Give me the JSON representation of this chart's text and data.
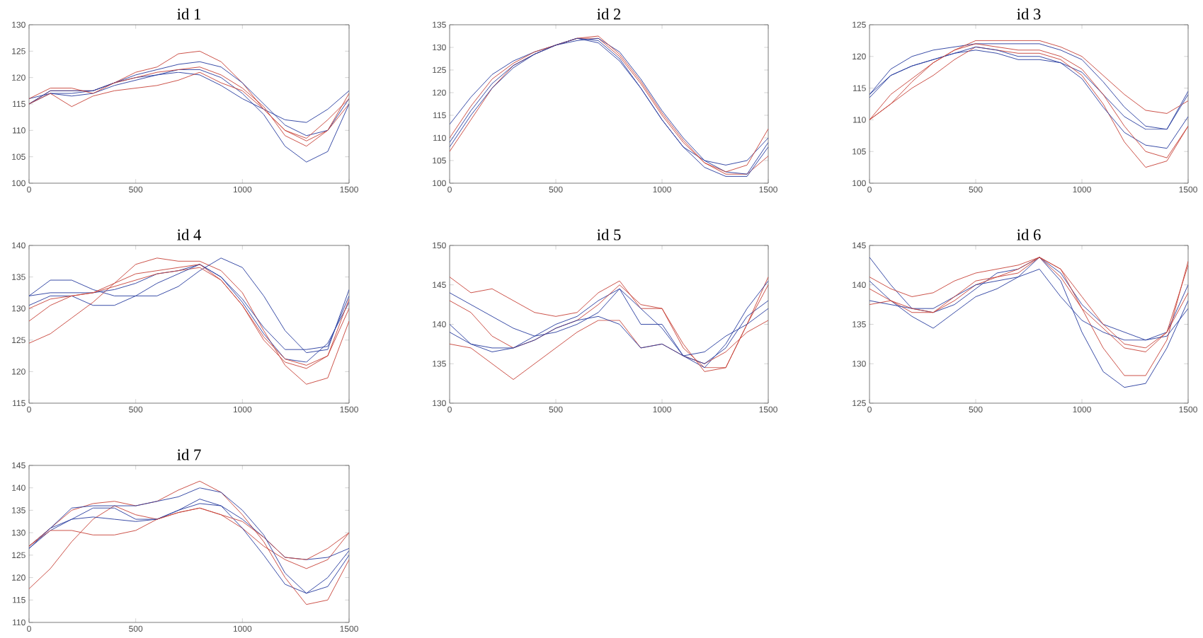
{
  "chart_data": [
    {
      "type": "line",
      "title": "id 1",
      "x": [
        0,
        100,
        200,
        300,
        400,
        500,
        600,
        700,
        800,
        900,
        1000,
        1100,
        1200,
        1300,
        1400,
        1500
      ],
      "xlim": [
        0,
        1500
      ],
      "xticks": [
        0,
        500,
        1000,
        1500
      ],
      "ylim": [
        100,
        130
      ],
      "yticks": [
        100,
        105,
        110,
        115,
        120,
        125,
        130
      ],
      "series": [
        {
          "color": "#c8463c",
          "values": [
            115,
            117.5,
            117.5,
            117.5,
            119,
            121,
            122,
            124.5,
            125,
            123,
            119,
            114,
            110,
            108,
            110,
            115
          ]
        },
        {
          "color": "#2b3fa0",
          "values": [
            116,
            117,
            117,
            117.5,
            119,
            120.5,
            121.5,
            122.5,
            123,
            122,
            119,
            115,
            111,
            109,
            110,
            116
          ]
        },
        {
          "color": "#2b3fa0",
          "values": [
            115,
            117,
            116.5,
            117,
            118.5,
            119.5,
            120.5,
            121.5,
            121.5,
            120,
            117,
            113,
            107,
            104,
            106,
            115
          ]
        },
        {
          "color": "#2b3fa0",
          "values": [
            115,
            117.5,
            117.5,
            117.5,
            119,
            120,
            120.5,
            121,
            120.5,
            118.5,
            116,
            114,
            112,
            111.5,
            114,
            117.5
          ]
        },
        {
          "color": "#c8463c",
          "values": [
            115,
            117,
            114.5,
            116.5,
            117.5,
            118,
            118.5,
            119.5,
            121,
            119,
            117.5,
            114,
            110,
            108.5,
            112,
            116
          ]
        },
        {
          "color": "#c8463c",
          "values": [
            116,
            118,
            118,
            117,
            119,
            120,
            121,
            121.5,
            122,
            120.5,
            118,
            114.5,
            109,
            107,
            110,
            117
          ]
        }
      ]
    },
    {
      "type": "line",
      "title": "id 2",
      "x": [
        0,
        100,
        200,
        300,
        400,
        500,
        600,
        700,
        800,
        900,
        1000,
        1100,
        1200,
        1300,
        1400,
        1500
      ],
      "xlim": [
        0,
        1500
      ],
      "xticks": [
        0,
        500,
        1000,
        1500
      ],
      "ylim": [
        100,
        135
      ],
      "yticks": [
        100,
        105,
        110,
        115,
        120,
        125,
        130,
        135
      ],
      "series": [
        {
          "color": "#2b3fa0",
          "values": [
            113,
            119,
            124,
            127,
            129,
            130.5,
            132,
            131,
            127,
            121,
            114,
            108,
            105,
            104,
            105,
            110
          ]
        },
        {
          "color": "#c8463c",
          "values": [
            107,
            114,
            121,
            126,
            128.5,
            130.5,
            132,
            132,
            128,
            122,
            115,
            109,
            104.5,
            102,
            102,
            106
          ]
        },
        {
          "color": "#2b3fa0",
          "values": [
            108,
            115,
            121,
            125.5,
            128.5,
            130.5,
            131.5,
            132,
            129,
            123,
            116,
            110,
            105,
            102.5,
            102,
            109
          ]
        },
        {
          "color": "#c8463c",
          "values": [
            110,
            117,
            123,
            126.5,
            129,
            130.5,
            132,
            132.5,
            128.5,
            122.5,
            115.5,
            109.5,
            104.5,
            102.5,
            104,
            112
          ]
        },
        {
          "color": "#2b3fa0",
          "values": [
            109,
            116,
            122,
            126,
            128.5,
            130.5,
            132,
            131.5,
            127.5,
            121,
            114,
            108,
            103.5,
            101.5,
            101.5,
            108
          ]
        }
      ]
    },
    {
      "type": "line",
      "title": "id 3",
      "x": [
        0,
        100,
        200,
        300,
        400,
        500,
        600,
        700,
        800,
        900,
        1000,
        1100,
        1200,
        1300,
        1400,
        1500
      ],
      "xlim": [
        0,
        1500
      ],
      "xticks": [
        0,
        500,
        1000,
        1500
      ],
      "ylim": [
        100,
        125
      ],
      "yticks": [
        100,
        105,
        110,
        115,
        120,
        125
      ],
      "series": [
        {
          "color": "#2b3fa0",
          "values": [
            114,
            118,
            120,
            121,
            121.5,
            122,
            122,
            122,
            122,
            121,
            119.5,
            116,
            112,
            109,
            108.5,
            114.5
          ]
        },
        {
          "color": "#c8463c",
          "values": [
            110,
            114,
            116.5,
            119,
            121,
            122.5,
            122.5,
            122.5,
            122.5,
            121.5,
            120,
            117,
            114,
            111.5,
            111,
            113
          ]
        },
        {
          "color": "#2b3fa0",
          "values": [
            113.5,
            117,
            118.5,
            119.5,
            120.5,
            121,
            120.5,
            119.5,
            119.5,
            119,
            117.5,
            114,
            110.5,
            108.5,
            108.5,
            114
          ]
        },
        {
          "color": "#c8463c",
          "values": [
            110,
            112.5,
            115,
            117,
            119.5,
            121.5,
            121,
            120.5,
            120.5,
            119.5,
            117,
            112.5,
            106.5,
            102.5,
            103.5,
            109
          ]
        },
        {
          "color": "#2b3fa0",
          "values": [
            114,
            117,
            118.5,
            119.5,
            120.5,
            121.5,
            121,
            120,
            120,
            119,
            116.5,
            112,
            108,
            106,
            105.5,
            110.5
          ]
        },
        {
          "color": "#c8463c",
          "values": [
            110,
            112.5,
            116,
            119,
            121,
            122,
            121.5,
            121,
            121,
            120,
            118,
            114,
            109,
            105,
            104,
            109
          ]
        }
      ]
    },
    {
      "type": "line",
      "title": "id 4",
      "x": [
        0,
        100,
        200,
        300,
        400,
        500,
        600,
        700,
        800,
        900,
        1000,
        1100,
        1200,
        1300,
        1400,
        1500
      ],
      "xlim": [
        0,
        1500
      ],
      "xticks": [
        0,
        500,
        1000,
        1500
      ],
      "ylim": [
        115,
        140
      ],
      "yticks": [
        115,
        120,
        125,
        130,
        135,
        140
      ],
      "series": [
        {
          "color": "#c8463c",
          "values": [
            124.5,
            126,
            128.5,
            131,
            134,
            137,
            138,
            137.5,
            137.5,
            136,
            132.5,
            126.5,
            121,
            118,
            119,
            128
          ]
        },
        {
          "color": "#2b3fa0",
          "values": [
            132,
            134.5,
            134.5,
            133,
            132,
            132,
            132,
            133.5,
            136,
            138,
            136.5,
            132,
            126.5,
            123,
            123.5,
            133
          ]
        },
        {
          "color": "#2b3fa0",
          "values": [
            132,
            132.5,
            132.5,
            132.5,
            133,
            134,
            135.5,
            136,
            137,
            135,
            131,
            126,
            122,
            121.5,
            124.5,
            131
          ]
        },
        {
          "color": "#c8463c",
          "values": [
            128,
            130.5,
            132,
            132.5,
            133.5,
            134.5,
            135.5,
            136,
            136.5,
            134.5,
            130.5,
            125,
            121.5,
            120.5,
            122.5,
            130
          ]
        },
        {
          "color": "#2b3fa0",
          "values": [
            130.5,
            132,
            132,
            130.5,
            130.5,
            132,
            134,
            135.5,
            137,
            135,
            131.5,
            127,
            123.5,
            123.5,
            124,
            132
          ]
        },
        {
          "color": "#c8463c",
          "values": [
            130,
            131.5,
            132,
            132.5,
            134,
            135.5,
            136,
            136.5,
            137,
            134.5,
            130.5,
            125.5,
            122,
            121,
            122.5,
            131.5
          ]
        }
      ]
    },
    {
      "type": "line",
      "title": "id 5",
      "x": [
        0,
        100,
        200,
        300,
        400,
        500,
        600,
        700,
        800,
        900,
        1000,
        1100,
        1200,
        1300,
        1400,
        1500
      ],
      "xlim": [
        0,
        1500
      ],
      "xticks": [
        0,
        500,
        1000,
        1500
      ],
      "ylim": [
        130,
        150
      ],
      "yticks": [
        130,
        135,
        140,
        145,
        150
      ],
      "series": [
        {
          "color": "#c8463c",
          "values": [
            146,
            144,
            144.5,
            143,
            141.5,
            141,
            141.5,
            144,
            145.5,
            142,
            142,
            137,
            134.5,
            134.5,
            140,
            146
          ]
        },
        {
          "color": "#2b3fa0",
          "values": [
            144,
            142.5,
            141,
            139.5,
            138.5,
            139,
            140,
            141.5,
            144.5,
            142,
            139.5,
            136,
            134.5,
            137.5,
            142,
            145.5
          ]
        },
        {
          "color": "#c8463c",
          "values": [
            137.5,
            137,
            135,
            133,
            135,
            137,
            139,
            140.5,
            140.5,
            137,
            137.5,
            136,
            135,
            136.5,
            139,
            140.5
          ]
        },
        {
          "color": "#2b3fa0",
          "values": [
            140,
            137.5,
            136.5,
            137,
            138.5,
            140,
            141,
            143,
            144.5,
            140,
            140,
            136,
            135,
            137,
            141,
            143
          ]
        },
        {
          "color": "#c8463c",
          "values": [
            143,
            141.5,
            138.5,
            137,
            138,
            139.5,
            140.5,
            142.5,
            145,
            142.5,
            142,
            137.5,
            134,
            134.5,
            140,
            145
          ]
        },
        {
          "color": "#2b3fa0",
          "values": [
            139,
            137.5,
            137,
            137,
            138,
            139.5,
            140.5,
            141,
            140,
            137,
            137.5,
            136,
            136.5,
            138.5,
            140,
            142
          ]
        }
      ]
    },
    {
      "type": "line",
      "title": "id 6",
      "x": [
        0,
        100,
        200,
        300,
        400,
        500,
        600,
        700,
        800,
        900,
        1000,
        1100,
        1200,
        1300,
        1400,
        1500
      ],
      "xlim": [
        0,
        1500
      ],
      "xticks": [
        0,
        500,
        1000,
        1500
      ],
      "ylim": [
        125,
        145
      ],
      "yticks": [
        125,
        130,
        135,
        140,
        145
      ],
      "series": [
        {
          "color": "#2b3fa0",
          "values": [
            143.5,
            140,
            137,
            136.5,
            137.5,
            139.5,
            141.5,
            142,
            143.5,
            141.5,
            137.5,
            135,
            134,
            133,
            134,
            140
          ]
        },
        {
          "color": "#c8463c",
          "values": [
            141,
            139.5,
            138.5,
            139,
            140.5,
            141.5,
            142,
            142.5,
            143.5,
            142,
            138.5,
            135,
            132.5,
            132,
            134,
            139
          ]
        },
        {
          "color": "#2b3fa0",
          "values": [
            140.5,
            138,
            136,
            134.5,
            136.5,
            138.5,
            139.5,
            141,
            143.5,
            140.5,
            134,
            129,
            127,
            127.5,
            132,
            138
          ]
        },
        {
          "color": "#c8463c",
          "values": [
            139.5,
            138,
            136.5,
            136.5,
            138,
            140,
            141,
            142,
            143.5,
            142,
            137,
            132,
            128.5,
            128.5,
            133,
            143
          ]
        },
        {
          "color": "#2b3fa0",
          "values": [
            138,
            137.5,
            137,
            137,
            138.5,
            140,
            140.5,
            141,
            142,
            138.5,
            135.5,
            134,
            133,
            133,
            133.5,
            137
          ]
        },
        {
          "color": "#c8463c",
          "values": [
            137.5,
            138,
            137,
            136.5,
            138.5,
            140.5,
            141,
            141.5,
            143.5,
            141,
            137,
            134.5,
            132,
            131.5,
            134,
            142.5
          ]
        }
      ]
    },
    {
      "type": "line",
      "title": "id 7",
      "x": [
        0,
        100,
        200,
        300,
        400,
        500,
        600,
        700,
        800,
        900,
        1000,
        1100,
        1200,
        1300,
        1400,
        1500
      ],
      "xlim": [
        0,
        1500
      ],
      "xticks": [
        0,
        500,
        1000,
        1500
      ],
      "ylim": [
        110,
        145
      ],
      "yticks": [
        110,
        115,
        120,
        125,
        130,
        135,
        140,
        145
      ],
      "series": [
        {
          "color": "#c8463c",
          "values": [
            117.5,
            122,
            128,
            133,
            136,
            134,
            133,
            134.5,
            135.5,
            134,
            131,
            127,
            124,
            122,
            124,
            130
          ]
        },
        {
          "color": "#2b3fa0",
          "values": [
            127,
            131,
            133,
            133.5,
            133,
            132.5,
            133,
            135,
            137.5,
            136,
            131,
            125,
            118.5,
            116.5,
            120,
            126
          ]
        },
        {
          "color": "#c8463c",
          "values": [
            127,
            131,
            135,
            136.5,
            137,
            136,
            137,
            139.5,
            141.5,
            139,
            134,
            128,
            120,
            114,
            115,
            124
          ]
        },
        {
          "color": "#2b3fa0",
          "values": [
            126.5,
            130.5,
            133,
            135.5,
            135.5,
            133,
            133,
            135,
            136.5,
            136,
            133,
            129,
            124.5,
            124,
            124.5,
            126.5
          ]
        },
        {
          "color": "#c8463c",
          "values": [
            127,
            130.5,
            130.5,
            129.5,
            129.5,
            130.5,
            133,
            134.5,
            135.5,
            134,
            132.5,
            129,
            124.5,
            124,
            126.5,
            130
          ]
        },
        {
          "color": "#2b3fa0",
          "values": [
            126.5,
            131,
            135.5,
            136,
            136,
            136,
            137,
            138,
            140,
            139,
            135,
            129.5,
            121,
            116.5,
            118,
            125
          ]
        }
      ]
    }
  ]
}
